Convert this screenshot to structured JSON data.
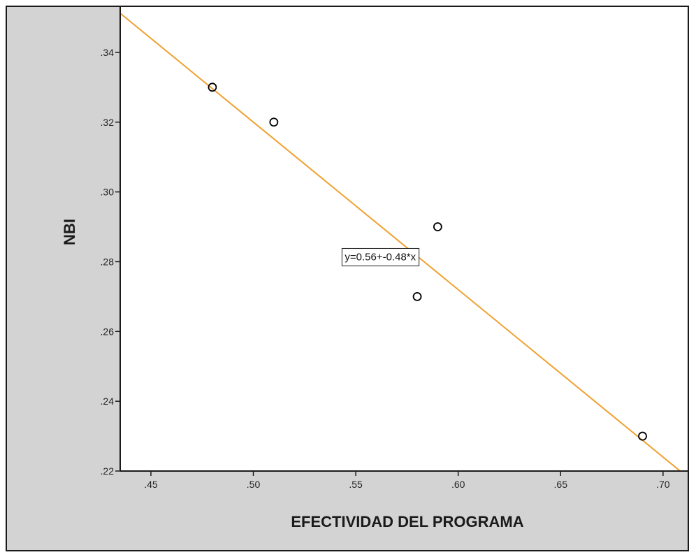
{
  "chart_data": {
    "type": "scatter",
    "xlabel": "EFECTIVIDAD DEL PROGRAMA",
    "ylabel": "NBI",
    "xlim": [
      0.435,
      0.712
    ],
    "ylim": [
      0.22,
      0.353
    ],
    "x_ticks": [
      {
        "value": 0.45,
        "label": ".45"
      },
      {
        "value": 0.5,
        "label": ".50"
      },
      {
        "value": 0.55,
        "label": ".55"
      },
      {
        "value": 0.6,
        "label": ".60"
      },
      {
        "value": 0.65,
        "label": ".65"
      },
      {
        "value": 0.7,
        "label": ".70"
      }
    ],
    "y_ticks": [
      {
        "value": 0.22,
        "label": ".22"
      },
      {
        "value": 0.24,
        "label": ".24"
      },
      {
        "value": 0.26,
        "label": ".26"
      },
      {
        "value": 0.28,
        "label": ".28"
      },
      {
        "value": 0.3,
        "label": ".30"
      },
      {
        "value": 0.32,
        "label": ".32"
      },
      {
        "value": 0.34,
        "label": ".34"
      }
    ],
    "points": [
      {
        "x": 0.48,
        "y": 0.33
      },
      {
        "x": 0.51,
        "y": 0.32
      },
      {
        "x": 0.58,
        "y": 0.27
      },
      {
        "x": 0.59,
        "y": 0.29
      },
      {
        "x": 0.69,
        "y": 0.23
      }
    ],
    "fit_line": {
      "intercept": 0.56,
      "slope": -0.48,
      "label": "y=0.56+-0.48*x",
      "color": "#f0a030"
    },
    "grid": false,
    "legend": "none",
    "colors": {
      "plot_bg": "#ffffff",
      "frame_bg": "#d3d3d3",
      "marker": "#000000"
    }
  }
}
